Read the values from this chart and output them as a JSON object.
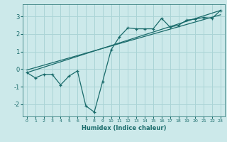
{
  "xlabel": "Humidex (Indice chaleur)",
  "ylabel": "",
  "bg_color": "#cce9ea",
  "grid_color": "#aad4d6",
  "line_color": "#1a6b6b",
  "xlim": [
    -0.5,
    23.5
  ],
  "ylim": [
    -2.7,
    3.7
  ],
  "yticks": [
    -2,
    -1,
    0,
    1,
    2,
    3
  ],
  "xticks": [
    0,
    1,
    2,
    3,
    4,
    5,
    6,
    7,
    8,
    9,
    10,
    11,
    12,
    13,
    14,
    15,
    16,
    17,
    18,
    19,
    20,
    21,
    22,
    23
  ],
  "series1_x": [
    0,
    1,
    2,
    3,
    4,
    5,
    6,
    7,
    8,
    9,
    10,
    11,
    12,
    13,
    14,
    15,
    16,
    17,
    18,
    19,
    20,
    21,
    22,
    23
  ],
  "series1_y": [
    -0.2,
    -0.5,
    -0.3,
    -0.3,
    -0.9,
    -0.4,
    -0.1,
    -2.1,
    -2.45,
    -0.7,
    1.1,
    1.85,
    2.35,
    2.3,
    2.3,
    2.3,
    2.9,
    2.4,
    2.5,
    2.8,
    2.85,
    2.95,
    2.9,
    3.35
  ],
  "series2_x": [
    0,
    23
  ],
  "series2_y": [
    -0.2,
    3.35
  ],
  "series3_x": [
    0,
    23
  ],
  "series3_y": [
    -0.05,
    3.1
  ]
}
